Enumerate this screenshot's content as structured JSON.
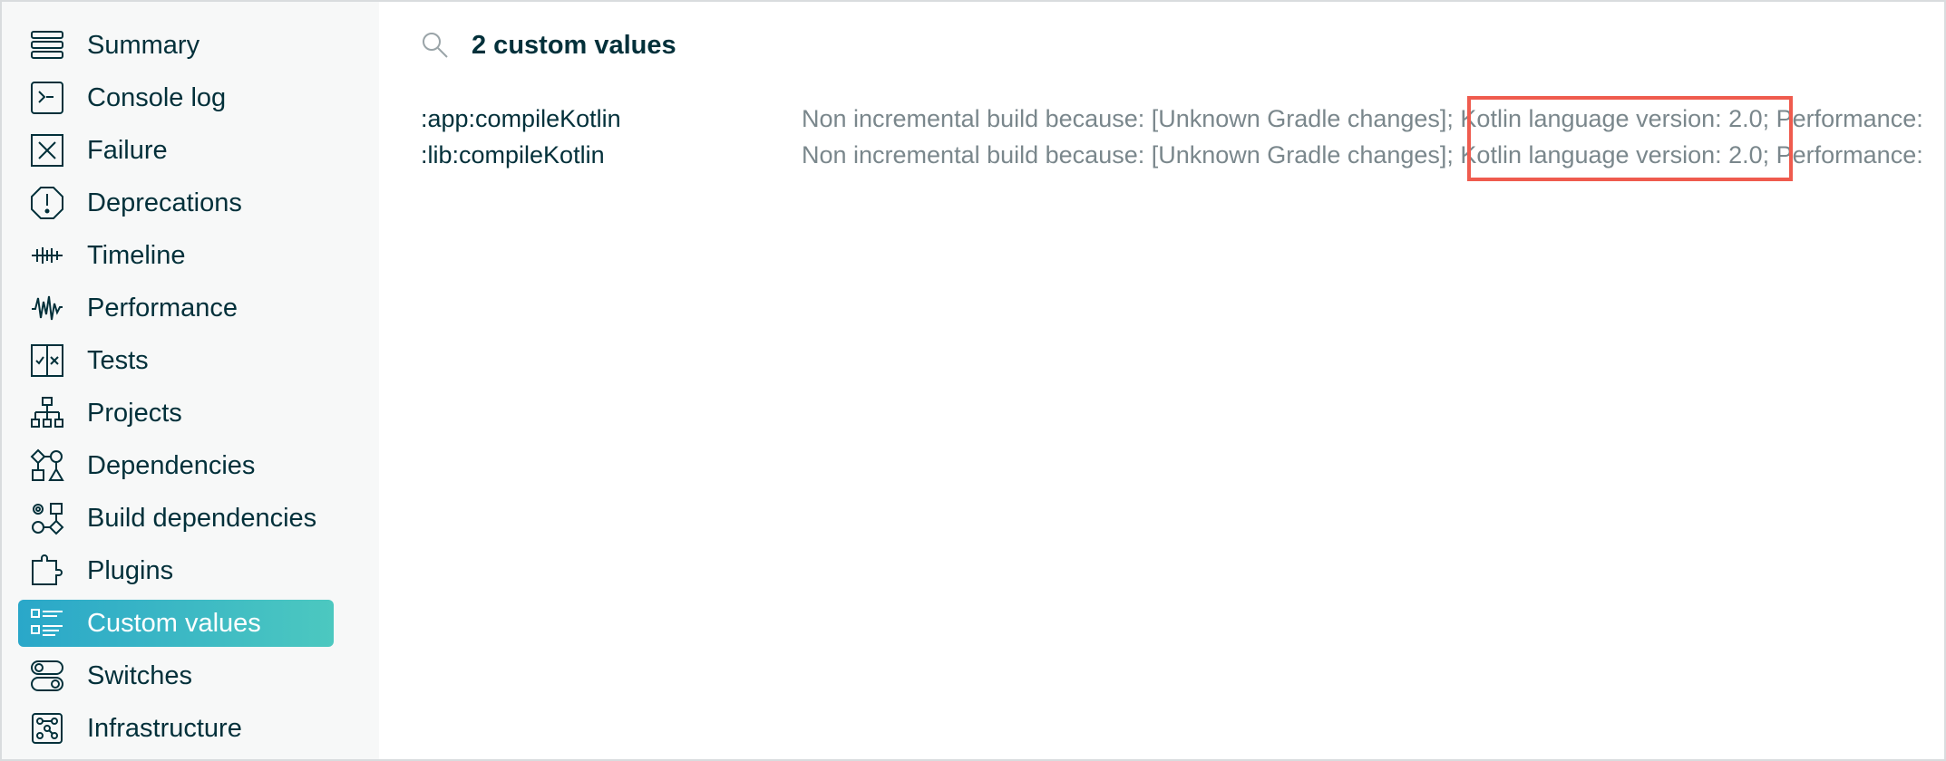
{
  "sidebar": {
    "items": [
      {
        "label": "Summary",
        "icon": "summary-icon"
      },
      {
        "label": "Console log",
        "icon": "console-icon"
      },
      {
        "label": "Failure",
        "icon": "failure-icon"
      },
      {
        "label": "Deprecations",
        "icon": "deprecation-icon"
      },
      {
        "label": "Timeline",
        "icon": "timeline-icon"
      },
      {
        "label": "Performance",
        "icon": "performance-icon"
      },
      {
        "label": "Tests",
        "icon": "tests-icon"
      },
      {
        "label": "Projects",
        "icon": "projects-icon"
      },
      {
        "label": "Dependencies",
        "icon": "dependencies-icon"
      },
      {
        "label": "Build dependencies",
        "icon": "build-dependencies-icon"
      },
      {
        "label": "Plugins",
        "icon": "plugins-icon"
      },
      {
        "label": "Custom values",
        "icon": "custom-values-icon",
        "active": true
      },
      {
        "label": "Switches",
        "icon": "switches-icon"
      },
      {
        "label": "Infrastructure",
        "icon": "infrastructure-icon"
      }
    ]
  },
  "main": {
    "search_title": "2 custom values",
    "rows": [
      {
        "task": ":app:compileKotlin",
        "value": "Non incremental build because: [Unknown Gradle changes]; Kotlin language version: 2.0; Performance:"
      },
      {
        "task": ":lib:compileKotlin",
        "value": "Non incremental build because: [Unknown Gradle changes]; Kotlin language version: 2.0; Performance:"
      }
    ]
  },
  "colors": {
    "accent_start": "#2aa7c9",
    "accent_end": "#4cc8c0",
    "highlight": "#ef5b4e",
    "text": "#02303a",
    "muted": "#7a878c"
  }
}
